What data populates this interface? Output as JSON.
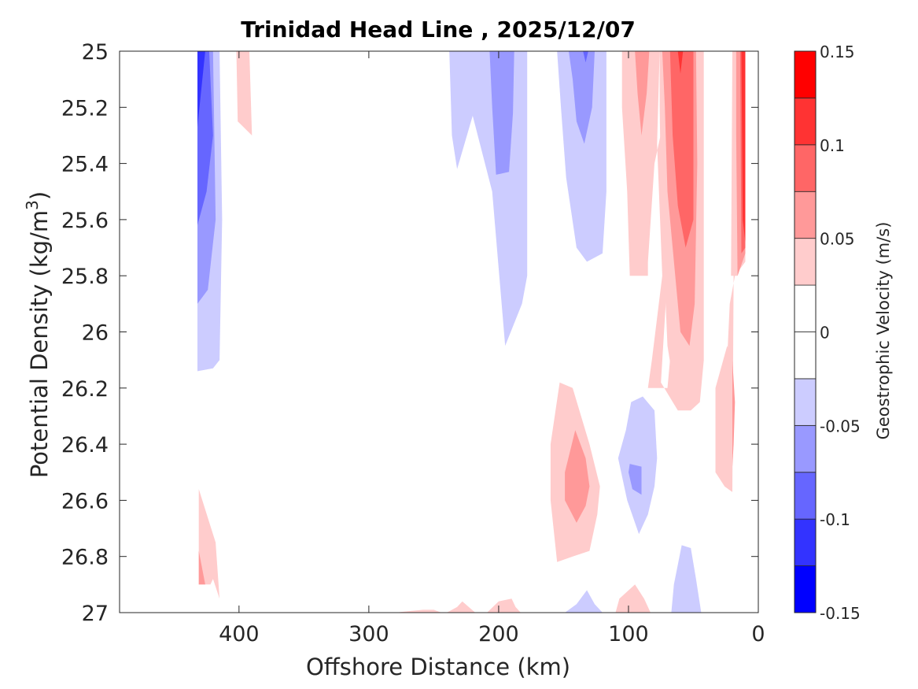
{
  "chart_data": {
    "type": "contour",
    "title": "Trinidad Head Line , 2025/12/07",
    "xlabel": "Offshore Distance (km)",
    "ylabel": "Potential Density (kg/m",
    "ylabel_superscript": "3",
    "ylabel_suffix": ")",
    "xlim": [
      492,
      0
    ],
    "ylim": [
      27,
      25
    ],
    "x_ticks": [
      400,
      300,
      200,
      100,
      0
    ],
    "x_tick_labels": [
      "400",
      "300",
      "200",
      "100",
      "0"
    ],
    "y_ticks": [
      25,
      25.2,
      25.4,
      25.6,
      25.8,
      26,
      26.2,
      26.4,
      26.6,
      26.8,
      27
    ],
    "y_tick_labels": [
      "25",
      "25.2",
      "25.4",
      "25.6",
      "25.8",
      "26",
      "26.2",
      "26.4",
      "26.6",
      "26.8",
      "27"
    ],
    "colorbar": {
      "label": "Geostrophic Velocity (m/s)",
      "levels": [
        -0.15,
        -0.125,
        -0.1,
        -0.075,
        -0.05,
        -0.025,
        0,
        0.025,
        0.05,
        0.075,
        0.1,
        0.125,
        0.15
      ],
      "tick_values": [
        0.15,
        0.1,
        0.05,
        0,
        -0.05,
        -0.1,
        -0.15
      ],
      "tick_labels": [
        "0.15",
        "0.1",
        "0.05",
        "0",
        "-0.05",
        "-0.1",
        "-0.15"
      ],
      "colors": [
        "#0000ff",
        "#3333ff",
        "#6666ff",
        "#9999ff",
        "#ccccff",
        "#ffffff",
        "#ffffff",
        "#ffcccc",
        "#ff9999",
        "#ff6666",
        "#ff3333",
        "#ff0000"
      ]
    },
    "regions": [
      {
        "level": 1,
        "fill": "#ccccff",
        "pts": [
          [
            432,
            25
          ],
          [
            415,
            25
          ],
          [
            413,
            25.6
          ],
          [
            415,
            26.1
          ],
          [
            420,
            26.13
          ],
          [
            432,
            26.14
          ]
        ]
      },
      {
        "level": 2,
        "fill": "#9999ff",
        "pts": [
          [
            432,
            25
          ],
          [
            420,
            25
          ],
          [
            418,
            25.6
          ],
          [
            424,
            25.85
          ],
          [
            432,
            25.9
          ]
        ]
      },
      {
        "level": 3,
        "fill": "#6666ff",
        "pts": [
          [
            432,
            25
          ],
          [
            423,
            25
          ],
          [
            420,
            25.3
          ],
          [
            425,
            25.5
          ],
          [
            432,
            25.62
          ]
        ]
      },
      {
        "level": 4,
        "fill": "#3333ff",
        "pts": [
          [
            432,
            25
          ],
          [
            426,
            25
          ],
          [
            432,
            25.27
          ]
        ]
      },
      {
        "level": 7,
        "fill": "#ffcccc",
        "pts": [
          [
            402,
            25
          ],
          [
            392,
            25
          ],
          [
            390,
            25.3
          ],
          [
            401,
            25.25
          ]
        ]
      },
      {
        "level": 1,
        "fill": "#ccccff",
        "pts": [
          [
            238,
            25
          ],
          [
            178,
            25
          ],
          [
            178,
            25.8
          ],
          [
            182,
            25.9
          ],
          [
            195,
            26.05
          ],
          [
            205,
            25.5
          ],
          [
            220,
            25.23
          ],
          [
            232,
            25.42
          ],
          [
            236,
            25.3
          ]
        ]
      },
      {
        "level": 2,
        "fill": "#9999ff",
        "pts": [
          [
            207,
            25
          ],
          [
            188,
            25
          ],
          [
            189,
            25.22
          ],
          [
            192,
            25.43
          ],
          [
            202,
            25.44
          ],
          [
            205,
            25.2
          ]
        ]
      },
      {
        "level": 1,
        "fill": "#ccccff",
        "pts": [
          [
            155,
            25
          ],
          [
            117,
            25
          ],
          [
            117,
            25.5
          ],
          [
            120,
            25.72
          ],
          [
            132,
            25.75
          ],
          [
            140,
            25.7
          ],
          [
            148,
            25.45
          ],
          [
            152,
            25.2
          ]
        ]
      },
      {
        "level": 2,
        "fill": "#9999ff",
        "pts": [
          [
            146,
            25
          ],
          [
            126,
            25
          ],
          [
            128,
            25.2
          ],
          [
            134,
            25.33
          ],
          [
            140,
            25.25
          ],
          [
            143,
            25.1
          ]
        ]
      },
      {
        "level": 3,
        "fill": "#6666ff",
        "pts": [
          [
            135,
            25
          ],
          [
            131,
            25
          ],
          [
            133,
            25.04
          ]
        ]
      },
      {
        "level": 7,
        "fill": "#ffcccc",
        "pts": [
          [
            105,
            25
          ],
          [
            76,
            25
          ],
          [
            78,
            25.33
          ],
          [
            74,
            25.8
          ],
          [
            78,
            25.95
          ],
          [
            82,
            26.1
          ],
          [
            85,
            26.2
          ],
          [
            70,
            26.2
          ],
          [
            67,
            26.05
          ],
          [
            61,
            25.9
          ],
          [
            48,
            25.9
          ],
          [
            48,
            26.1
          ],
          [
            52,
            26.22
          ],
          [
            62,
            26.28
          ],
          [
            75,
            26.18
          ],
          [
            70,
            25.8
          ],
          [
            68,
            25.5
          ],
          [
            73,
            25.25
          ],
          [
            80,
            25.4
          ],
          [
            85,
            25.75
          ],
          [
            85,
            25.8
          ],
          [
            99,
            25.8
          ],
          [
            101,
            25.5
          ],
          [
            105,
            25.2
          ]
        ]
      },
      {
        "level": 7,
        "fill": "#ffcccc",
        "pts": [
          [
            76,
            25
          ],
          [
            42,
            25
          ],
          [
            42,
            26.1
          ],
          [
            45,
            26.25
          ],
          [
            52,
            26.28
          ],
          [
            62,
            26.28
          ],
          [
            70,
            26.05
          ],
          [
            75,
            25.5
          ],
          [
            76,
            25.2
          ]
        ]
      },
      {
        "level": 8,
        "fill": "#ff9999",
        "pts": [
          [
            95,
            25
          ],
          [
            84,
            25
          ],
          [
            86,
            25.15
          ],
          [
            90,
            25.3
          ],
          [
            93,
            25.15
          ]
        ]
      },
      {
        "level": 8,
        "fill": "#ff9999",
        "pts": [
          [
            74,
            25
          ],
          [
            48,
            25
          ],
          [
            47,
            25.4
          ],
          [
            49,
            25.9
          ],
          [
            53,
            26.05
          ],
          [
            60,
            26.0
          ],
          [
            64,
            25.8
          ],
          [
            70,
            25.5
          ],
          [
            72,
            25.2
          ]
        ]
      },
      {
        "level": 9,
        "fill": "#ff6666",
        "pts": [
          [
            68,
            25
          ],
          [
            50,
            25
          ],
          [
            50,
            25.6
          ],
          [
            56,
            25.7
          ],
          [
            62,
            25.55
          ],
          [
            66,
            25.3
          ]
        ]
      },
      {
        "level": 10,
        "fill": "#ff3333",
        "pts": [
          [
            62,
            25
          ],
          [
            58,
            25
          ],
          [
            60,
            25.08
          ]
        ]
      },
      {
        "level": 7,
        "fill": "#ffcccc",
        "pts": [
          [
            20,
            25
          ],
          [
            10,
            25
          ],
          [
            10,
            25.75
          ],
          [
            18,
            25.8
          ],
          [
            22,
            25.9
          ],
          [
            25,
            26.2
          ],
          [
            33,
            26.3
          ],
          [
            33,
            26.5
          ],
          [
            26,
            26.55
          ],
          [
            20,
            26.57
          ],
          [
            19,
            25.8
          ]
        ]
      },
      {
        "level": 7,
        "fill": "#ffcccc",
        "pts": [
          [
            20,
            25
          ],
          [
            10,
            25
          ],
          [
            10,
            25.72
          ],
          [
            16,
            25.8
          ],
          [
            21,
            25.8
          ]
        ]
      },
      {
        "level": 8,
        "fill": "#ff9999",
        "pts": [
          [
            17,
            25
          ],
          [
            10,
            25
          ],
          [
            10,
            25.72
          ],
          [
            16,
            25.8
          ],
          [
            17,
            25.3
          ]
        ]
      },
      {
        "level": 9,
        "fill": "#ff6666",
        "pts": [
          [
            14,
            25
          ],
          [
            10,
            25
          ],
          [
            10,
            25.7
          ],
          [
            13,
            25.72
          ]
        ]
      },
      {
        "level": 10,
        "fill": "#ff3333",
        "pts": [
          [
            13,
            25
          ],
          [
            10,
            25
          ],
          [
            10,
            25.68
          ],
          [
            12,
            25.6
          ]
        ]
      },
      {
        "level": 8,
        "fill": "#ff9999",
        "pts": [
          [
            20,
            26.1
          ],
          [
            18,
            26.25
          ],
          [
            19,
            26.4
          ],
          [
            20,
            26.48
          ]
        ]
      },
      {
        "level": 7,
        "fill": "#ffcccc",
        "pts": [
          [
            33,
            26.2
          ],
          [
            24,
            26.05
          ],
          [
            20,
            26.1
          ],
          [
            20,
            26.57
          ],
          [
            26,
            26.55
          ],
          [
            30,
            26.45
          ],
          [
            33,
            26.3
          ]
        ]
      },
      {
        "level": 7,
        "fill": "#ffcccc",
        "pts": [
          [
            153,
            26.18
          ],
          [
            143,
            26.2
          ],
          [
            130,
            26.4
          ],
          [
            122,
            26.55
          ],
          [
            124,
            26.65
          ],
          [
            130,
            26.78
          ],
          [
            143,
            26.8
          ],
          [
            155,
            26.82
          ],
          [
            160,
            26.6
          ],
          [
            160,
            26.4
          ]
        ]
      },
      {
        "level": 8,
        "fill": "#ff9999",
        "pts": [
          [
            141,
            26.35
          ],
          [
            133,
            26.45
          ],
          [
            130,
            26.55
          ],
          [
            133,
            26.62
          ],
          [
            140,
            26.68
          ],
          [
            149,
            26.6
          ],
          [
            149,
            26.5
          ]
        ]
      },
      {
        "level": 1,
        "fill": "#ccccff",
        "pts": [
          [
            89,
            26.23
          ],
          [
            80,
            26.28
          ],
          [
            78,
            26.45
          ],
          [
            80,
            26.55
          ],
          [
            85,
            26.65
          ],
          [
            92,
            26.72
          ],
          [
            101,
            26.6
          ],
          [
            108,
            26.45
          ],
          [
            102,
            26.35
          ],
          [
            98,
            26.25
          ]
        ]
      },
      {
        "level": 2,
        "fill": "#9999ff",
        "pts": [
          [
            99,
            26.47
          ],
          [
            90,
            26.48
          ],
          [
            90,
            26.58
          ],
          [
            97,
            26.56
          ],
          [
            100,
            26.5
          ]
        ]
      },
      {
        "level": 7,
        "fill": "#ffcccc",
        "pts": [
          [
            431,
            26.56
          ],
          [
            418,
            26.75
          ],
          [
            415,
            26.95
          ],
          [
            420,
            26.88
          ],
          [
            422,
            26.9
          ],
          [
            431,
            26.9
          ]
        ]
      },
      {
        "level": 8,
        "fill": "#ff9999",
        "pts": [
          [
            431,
            26.78
          ],
          [
            426,
            26.9
          ],
          [
            431,
            26.9
          ]
        ]
      },
      {
        "level": 1,
        "fill": "#ccccff",
        "pts": [
          [
            67,
            27
          ],
          [
            44,
            27
          ],
          [
            48,
            26.88
          ],
          [
            52,
            26.77
          ],
          [
            59,
            26.76
          ],
          [
            65,
            26.9
          ]
        ]
      },
      {
        "level": 1,
        "fill": "#ccccff",
        "pts": [
          [
            149,
            27
          ],
          [
            120,
            27
          ],
          [
            126,
            26.97
          ],
          [
            132,
            26.92
          ],
          [
            140,
            26.97
          ]
        ]
      },
      {
        "level": 7,
        "fill": "#ffcccc",
        "pts": [
          [
            110,
            27
          ],
          [
            83,
            27
          ],
          [
            88,
            26.95
          ],
          [
            95,
            26.9
          ],
          [
            107,
            26.95
          ]
        ]
      },
      {
        "level": 7,
        "fill": "#ffcccc",
        "pts": [
          [
            280,
            27
          ],
          [
            244,
            27
          ],
          [
            250,
            26.99
          ],
          [
            258,
            26.99
          ],
          [
            270,
            26.995
          ]
        ]
      },
      {
        "level": 7,
        "fill": "#ffcccc",
        "pts": [
          [
            240,
            27
          ],
          [
            218,
            27
          ],
          [
            228,
            26.96
          ],
          [
            232,
            26.98
          ]
        ]
      },
      {
        "level": 7,
        "fill": "#ffcccc",
        "pts": [
          [
            209,
            27
          ],
          [
            183,
            27
          ],
          [
            187,
            26.98
          ],
          [
            190,
            26.95
          ],
          [
            200,
            26.96
          ]
        ]
      }
    ]
  }
}
